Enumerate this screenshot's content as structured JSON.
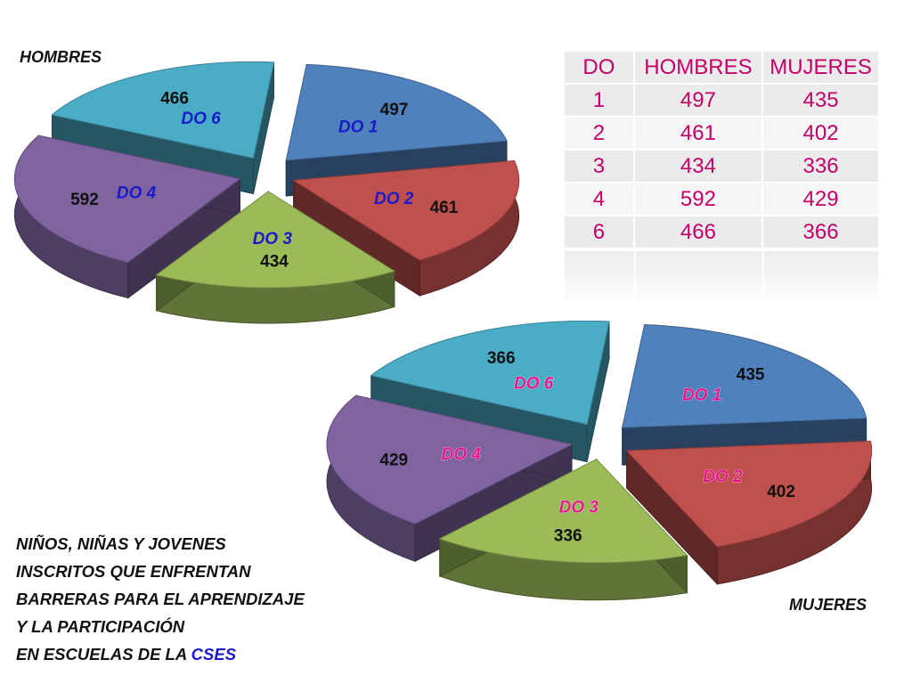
{
  "caption": {
    "lines": [
      "NIÑOS, NIÑAS Y JOVENES",
      "INSCRITOS QUE ENFRENTAN",
      "BARRERAS PARA EL APRENDIZAJE",
      "Y LA PARTICIPACIÓN"
    ],
    "last_line_prefix": "EN ESCUELAS DE LA ",
    "last_line_accent": "CSES",
    "accent_color": "#1a1acc"
  },
  "table": {
    "headers": [
      "DO",
      "HOMBRES",
      "MUJERES"
    ],
    "rows": [
      [
        "1",
        "497",
        "435"
      ],
      [
        "2",
        "461",
        "402"
      ],
      [
        "3",
        "434",
        "336"
      ],
      [
        "4",
        "592",
        "429"
      ],
      [
        "6",
        "466",
        "366"
      ]
    ],
    "text_color": "#c4006a"
  },
  "colors": {
    "DO 1": "#4f81bd",
    "DO 2": "#c0504d",
    "DO 3": "#9bbb59",
    "DO 4": "#8064a2",
    "DO 6": "#4bacc6",
    "men_category_label": "#1a1acc",
    "women_category_label": "#e6138c"
  },
  "chart_data": [
    {
      "type": "pie",
      "title": "HOMBRES",
      "style": "3d-exploded",
      "categories": [
        "DO 1",
        "DO 2",
        "DO 3",
        "DO 4",
        "DO 6"
      ],
      "values": [
        497,
        461,
        434,
        592,
        466
      ]
    },
    {
      "type": "pie",
      "title": "MUJERES",
      "style": "3d-exploded",
      "categories": [
        "DO 1",
        "DO 2",
        "DO 3",
        "DO 4",
        "DO 6"
      ],
      "values": [
        435,
        402,
        336,
        429,
        366
      ]
    }
  ]
}
